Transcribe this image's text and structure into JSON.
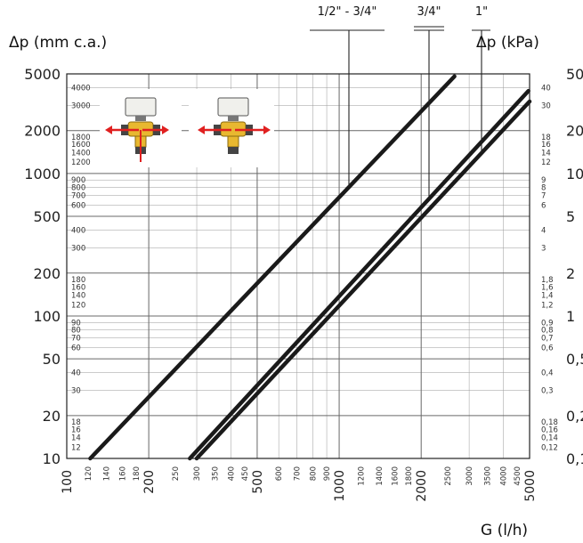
{
  "chart_data": {
    "type": "line",
    "title": "",
    "xlabel": "G (l/h)",
    "ylabel_left": "Δp (mm c.a.)",
    "ylabel_right": "Δp (kPa)",
    "x_scale": "log",
    "y_scale": "log",
    "xlim": [
      100,
      5000
    ],
    "ylim_left": [
      10,
      5000
    ],
    "ylim_right": [
      0.1,
      50
    ],
    "grid": true,
    "x_ticks_major": [
      100,
      200,
      500,
      1000,
      2000,
      5000
    ],
    "x_ticks_minor": [
      120,
      140,
      160,
      180,
      250,
      300,
      350,
      400,
      450,
      600,
      700,
      800,
      900,
      1200,
      1400,
      1600,
      1800,
      2500,
      3000,
      3500,
      4000,
      4500
    ],
    "y_ticks_left_major": [
      10,
      20,
      50,
      100,
      200,
      500,
      1000,
      2000,
      5000
    ],
    "y_ticks_left_minor": [
      12,
      14,
      16,
      18,
      30,
      40,
      60,
      70,
      80,
      90,
      120,
      140,
      160,
      180,
      300,
      400,
      600,
      700,
      800,
      900,
      1200,
      1400,
      1600,
      1800,
      3000,
      4000
    ],
    "y_ticks_right_major": [
      "0,1",
      "0,2",
      "0,5",
      "1",
      "2",
      "5",
      "10",
      "20",
      "50"
    ],
    "y_ticks_right_minor": [
      "0,12",
      "0,14",
      "0,16",
      "0,18",
      "0,3",
      "0,4",
      "0,6",
      "0,7",
      "0,8",
      "0,9",
      "1,2",
      "1,4",
      "1,6",
      "1,8",
      "3",
      "4",
      "6",
      "7",
      "8",
      "9",
      "12",
      "14",
      "16",
      "18",
      "30",
      "40"
    ],
    "series": [
      {
        "name": "1/2\" - 3/4\"",
        "x": [
          122,
          2650
        ],
        "y": [
          10,
          4800
        ]
      },
      {
        "name": "3/4\"",
        "x": [
          283,
          4950
        ],
        "y": [
          10,
          3800
        ]
      },
      {
        "name": "1\"",
        "x": [
          300,
          5000
        ],
        "y": [
          10,
          3200
        ]
      }
    ]
  }
}
